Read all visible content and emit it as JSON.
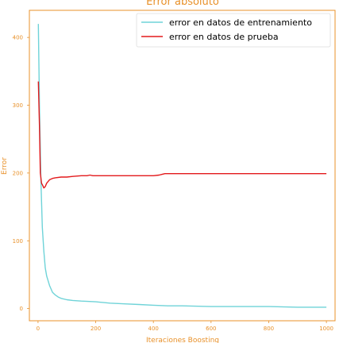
{
  "chart_data": {
    "type": "line",
    "title": "Error absoluto",
    "xlabel": "Iteraciones Boosting",
    "ylabel": "Error",
    "xlim": [
      -30,
      1030
    ],
    "ylim": [
      -18,
      440
    ],
    "xticks": [
      0,
      200,
      400,
      600,
      800,
      1000
    ],
    "yticks": [
      0,
      100,
      200,
      300,
      400
    ],
    "grid": false,
    "legend_position": "top-right",
    "series": [
      {
        "name": "error en datos de entrenamiento",
        "color": "#6fd3d8",
        "x": [
          1,
          5,
          10,
          15,
          20,
          25,
          30,
          40,
          50,
          60,
          70,
          80,
          100,
          120,
          150,
          200,
          250,
          300,
          350,
          400,
          450,
          500,
          600,
          700,
          800,
          900,
          1000
        ],
        "y": [
          420,
          300,
          190,
          120,
          85,
          60,
          48,
          34,
          24,
          20,
          17,
          15,
          13,
          12,
          11,
          10,
          8,
          7,
          6,
          5,
          4,
          4,
          3,
          3,
          3,
          2,
          2
        ]
      },
      {
        "name": "error en datos de prueba",
        "color": "#e31a1c",
        "x": [
          1,
          5,
          8,
          12,
          16,
          20,
          25,
          30,
          40,
          50,
          60,
          80,
          100,
          120,
          150,
          170,
          180,
          190,
          200,
          250,
          300,
          400,
          420,
          430,
          440,
          500,
          600,
          700,
          800,
          900,
          1000
        ],
        "y": [
          335,
          270,
          200,
          185,
          182,
          178,
          180,
          185,
          190,
          192,
          193,
          194,
          194,
          195,
          196,
          196,
          197,
          196,
          196,
          196,
          196,
          196,
          197,
          198,
          199,
          199,
          199,
          199,
          199,
          199,
          199
        ]
      }
    ]
  }
}
